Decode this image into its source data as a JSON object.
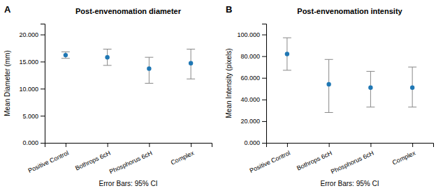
{
  "chart_data": [
    {
      "type": "dot",
      "title": "Post-envenomation diameter",
      "ylabel": "Mean Diameter (mm)",
      "xlabel": "Error Bars: 95% CI",
      "panel_label": "A",
      "categories": [
        "Positive Control",
        "Bothrops 6cH",
        "Phosphorus 6cH",
        "Complex"
      ],
      "values": [
        16.2,
        15.8,
        13.7,
        14.7
      ],
      "ci_low": [
        15.6,
        14.3,
        11.0,
        11.8
      ],
      "ci_high": [
        16.8,
        17.3,
        15.8,
        17.3
      ],
      "ylim": [
        0,
        22
      ],
      "yticks": [
        {
          "value": 0,
          "label": "0.000"
        },
        {
          "value": 5.0,
          "label": "5.000"
        },
        {
          "value": 10.0,
          "label": "10.000"
        },
        {
          "value": 15.0,
          "label": "15.000"
        },
        {
          "value": 20.0,
          "label": "20.000"
        }
      ],
      "grid": false
    },
    {
      "type": "dot",
      "title": "Post-envenomation intensity",
      "ylabel": "Mean Intensity (pixels)",
      "xlabel": "Error Bars: 95% CI",
      "panel_label": "B",
      "categories": [
        "Positive Control",
        "Bothrops 6cH",
        "Phosphorus 6cH",
        "Complex"
      ],
      "values": [
        82000,
        54000,
        51000,
        51000
      ],
      "ci_low": [
        67000,
        28000,
        33000,
        33000
      ],
      "ci_high": [
        97000,
        77000,
        66000,
        70000
      ],
      "ylim": [
        0,
        110000
      ],
      "yticks": [
        {
          "value": 0,
          "label": "0.000"
        },
        {
          "value": 20000,
          "label": "20.000"
        },
        {
          "value": 40000,
          "label": "40.000"
        },
        {
          "value": 60000,
          "label": "60.000"
        },
        {
          "value": 80000,
          "label": "80.000"
        },
        {
          "value": 100000,
          "label": "100.000"
        }
      ],
      "grid": false
    }
  ]
}
